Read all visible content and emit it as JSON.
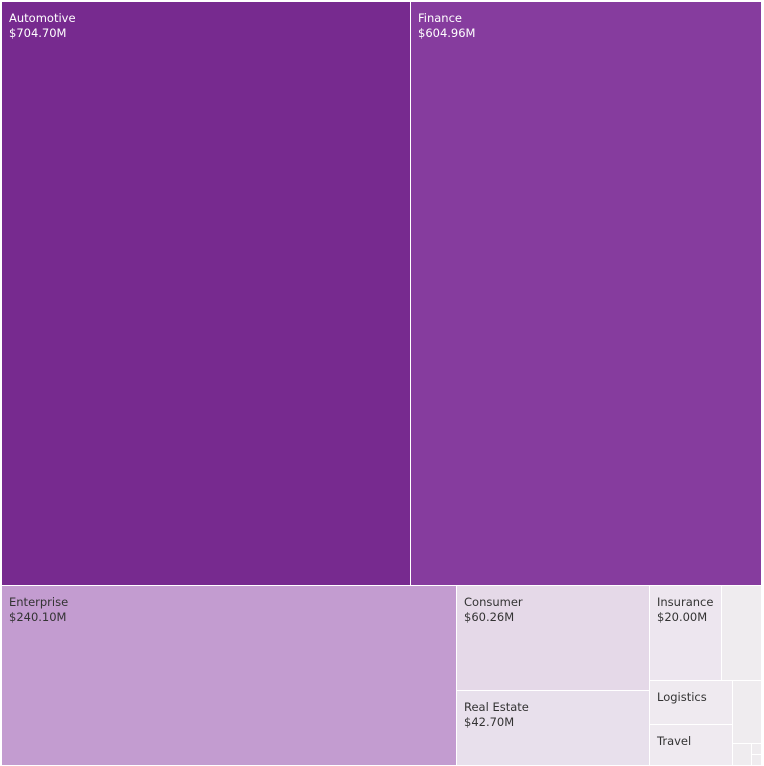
{
  "chart_data": {
    "type": "treemap",
    "value_format": "$M",
    "items": [
      {
        "name": "Automotive",
        "value": 704.7,
        "label": "$704.70M",
        "color": "#772a8f",
        "text_color": "#ffffff"
      },
      {
        "name": "Finance",
        "value": 604.96,
        "label": "$604.96M",
        "color": "#863c9e",
        "text_color": "#ffffff"
      },
      {
        "name": "Enterprise",
        "value": 240.1,
        "label": "$240.10M",
        "color": "#c39cd0",
        "text_color": "#333333"
      },
      {
        "name": "Consumer",
        "value": 60.26,
        "label": "$60.26M",
        "color": "#e5d9e8",
        "text_color": "#333333"
      },
      {
        "name": "Real Estate",
        "value": 42.7,
        "label": "$42.70M",
        "color": "#e8e0ec",
        "text_color": "#333333"
      },
      {
        "name": "Insurance",
        "value": 20.0,
        "label": "$20.00M",
        "color": "#ede6ef",
        "text_color": "#333333"
      },
      {
        "name": "Logistics",
        "value": 10.7,
        "color": "#efeaf0",
        "text_color": "#333333"
      },
      {
        "name": "Travel",
        "value": 10.2,
        "color": "#efeaf0",
        "text_color": "#333333"
      },
      {
        "name": "",
        "value": 11.3,
        "color": "#efecef"
      },
      {
        "name": "",
        "value": 5.4,
        "color": "#efecef"
      },
      {
        "name": "",
        "value": 1.3,
        "color": "#efecef"
      },
      {
        "name": "",
        "value": 0.6,
        "color": "#efecef"
      },
      {
        "name": "",
        "value": 0.5,
        "color": "#efecef"
      }
    ]
  }
}
